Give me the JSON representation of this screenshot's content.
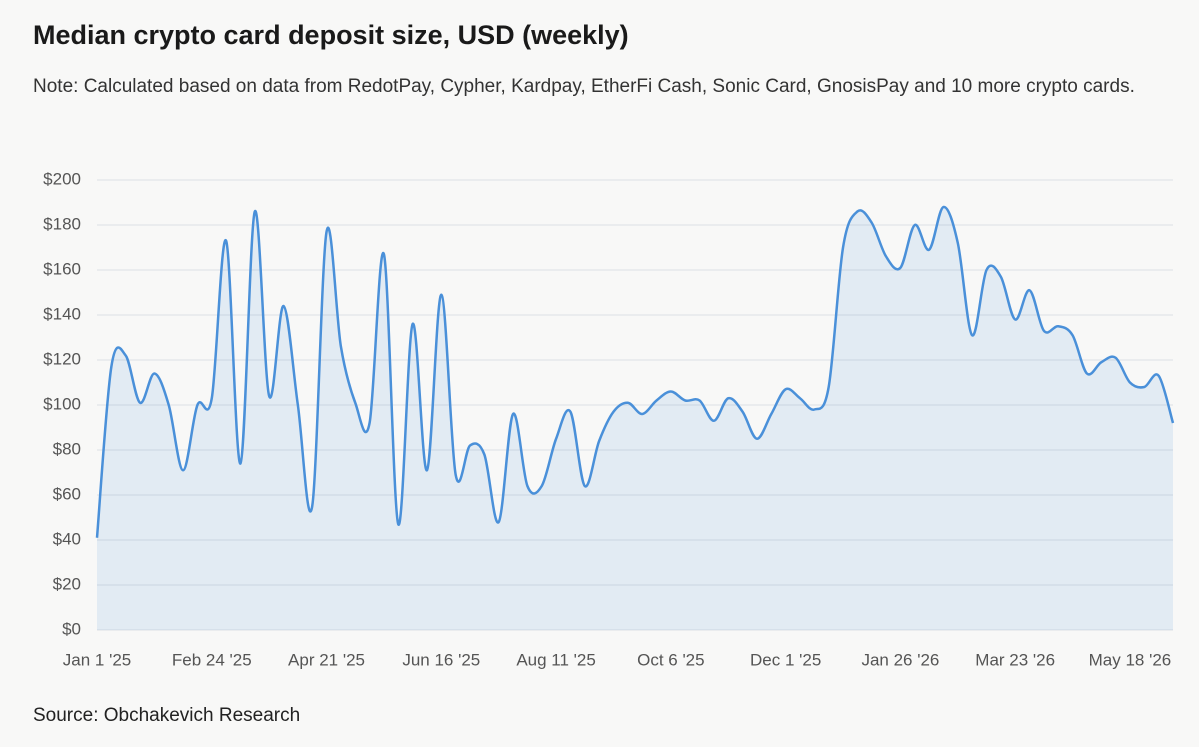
{
  "chart_data": {
    "type": "line",
    "title": "Median crypto card deposit size, USD (weekly)",
    "subtitle": "Note: Calculated based on data from RedotPay, Cypher, Kardpay, EtherFi Cash, Sonic Card, GnosisPay and 10 more crypto cards.",
    "source": "Source: Obchakevich Research",
    "categories": [
      "Jan 1 '25",
      null,
      null,
      null,
      null,
      null,
      null,
      null,
      "Feb 24 '25",
      null,
      null,
      null,
      null,
      null,
      null,
      null,
      "Apr 21 '25",
      null,
      null,
      null,
      null,
      null,
      null,
      null,
      "Jun 16 '25",
      null,
      null,
      null,
      null,
      null,
      null,
      null,
      "Aug 11 '25",
      null,
      null,
      null,
      null,
      null,
      null,
      null,
      "Oct 6 '25",
      null,
      null,
      null,
      null,
      null,
      null,
      null,
      "Dec 1 '25",
      null,
      null,
      null,
      null,
      null,
      null,
      null,
      "Jan 26 '26",
      null,
      null,
      null,
      null,
      null,
      null,
      null,
      "Mar 23 '26",
      null,
      null,
      null,
      null,
      null,
      null,
      null,
      "May 18 '26",
      null,
      null,
      null
    ],
    "values": [
      41,
      117,
      122,
      101,
      114,
      100,
      71,
      100,
      103,
      173,
      74,
      186,
      104,
      144,
      100,
      55,
      177,
      126,
      101,
      92,
      167,
      47,
      136,
      71,
      149,
      69,
      82,
      78,
      48,
      96,
      64,
      64,
      85,
      97,
      64,
      84,
      97,
      101,
      96,
      102,
      106,
      102,
      102,
      93,
      103,
      97,
      85,
      96,
      107,
      103,
      98,
      108,
      170,
      186,
      181,
      166,
      161,
      180,
      169,
      188,
      172,
      131,
      160,
      157,
      138,
      151,
      133,
      135,
      131,
      114,
      119,
      121,
      110,
      108,
      113,
      92
    ],
    "color": "#4a90d9",
    "ylim": [
      0,
      200
    ],
    "yticks": [
      {
        "value": 0,
        "label": "$0"
      },
      {
        "value": 20,
        "label": "$20"
      },
      {
        "value": 40,
        "label": "$40"
      },
      {
        "value": 60,
        "label": "$60"
      },
      {
        "value": 80,
        "label": "$80"
      },
      {
        "value": 100,
        "label": "$100"
      },
      {
        "value": 120,
        "label": "$120"
      },
      {
        "value": 140,
        "label": "$140"
      },
      {
        "value": 160,
        "label": "$160"
      },
      {
        "value": 180,
        "label": "$180"
      },
      {
        "value": 200,
        "label": "$200"
      }
    ],
    "grid": true
  }
}
